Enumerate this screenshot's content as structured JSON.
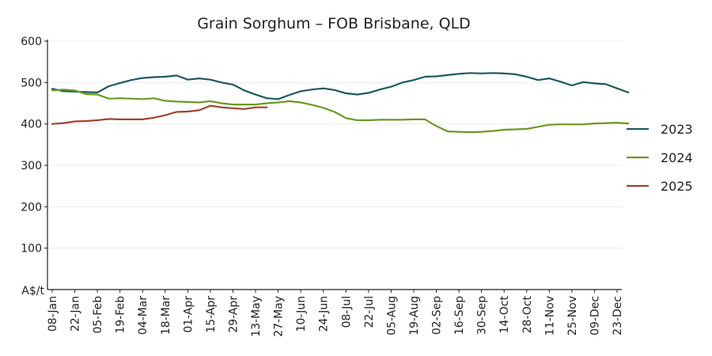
{
  "chart_data": {
    "type": "line",
    "title": "Grain Sorghum – FOB Brisbane, QLD",
    "ylabel": "A$/t",
    "xlabel": "",
    "ylim": [
      0,
      600
    ],
    "yticks": [
      "100",
      "200",
      "300",
      "400",
      "500",
      "600"
    ],
    "grid": "horizontal",
    "legend_position": "right",
    "x_ticks": [
      "08-Jan",
      "22-Jan",
      "05-Feb",
      "19-Feb",
      "04-Mar",
      "18-Mar",
      "01-Apr",
      "15-Apr",
      "29-Apr",
      "13-May",
      "27-May",
      "10-Jun",
      "24-Jun",
      "08-Jul",
      "22-Jul",
      "05-Aug",
      "19-Aug",
      "02-Sep",
      "16-Sep",
      "30-Sep",
      "14-Oct",
      "28-Oct",
      "11-Nov",
      "25-Nov",
      "09-Dec",
      "23-Dec"
    ],
    "x_step_days": 7,
    "series": [
      {
        "name": "2023",
        "color": "#1d5a5e",
        "values": [
          485,
          479,
          478,
          477,
          476,
          491,
          499,
          506,
          511,
          513,
          514,
          517,
          507,
          510,
          507,
          500,
          495,
          481,
          471,
          462,
          460,
          470,
          479,
          483,
          486,
          482,
          474,
          471,
          475,
          483,
          490,
          500,
          506,
          514,
          515,
          518,
          521,
          523,
          522,
          523,
          522,
          520,
          514,
          506,
          510,
          502,
          493,
          501,
          498,
          496,
          486,
          476
        ]
      },
      {
        "name": "2024",
        "color": "#6b9a22",
        "values": [
          481,
          483,
          481,
          472,
          471,
          461,
          462,
          461,
          460,
          462,
          456,
          454,
          453,
          452,
          455,
          450,
          447,
          447,
          447,
          450,
          452,
          455,
          452,
          446,
          439,
          429,
          414,
          409,
          409,
          410,
          410,
          410,
          411,
          411,
          395,
          382,
          381,
          380,
          381,
          383,
          386,
          387,
          388,
          393,
          398,
          399,
          399,
          399,
          401,
          402,
          403,
          401
        ]
      },
      {
        "name": "2025",
        "color": "#a0442c",
        "values": [
          400,
          402,
          406,
          407,
          409,
          412,
          411,
          411,
          411,
          415,
          421,
          429,
          430,
          433,
          444,
          440,
          438,
          436,
          440,
          440
        ]
      }
    ]
  }
}
